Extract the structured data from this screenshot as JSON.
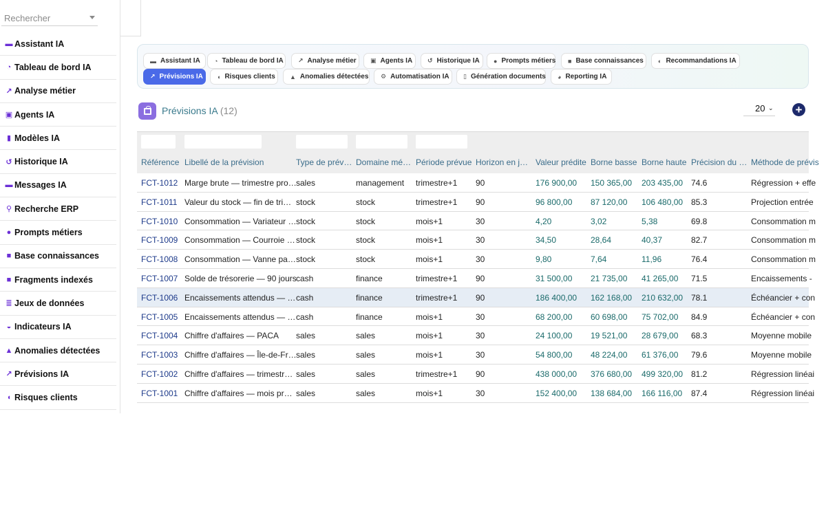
{
  "search": {
    "placeholder": "Rechercher"
  },
  "sidebar": {
    "items": [
      {
        "label": "Assistant IA",
        "icon": "chat-icon"
      },
      {
        "label": "Tableau de bord IA",
        "icon": "dashboard-icon"
      },
      {
        "label": "Analyse métier",
        "icon": "chart-line-icon"
      },
      {
        "label": "Agents IA",
        "icon": "robot-icon"
      },
      {
        "label": "Modèles IA",
        "icon": "book-icon"
      },
      {
        "label": "Historique IA",
        "icon": "history-icon"
      },
      {
        "label": "Messages IA",
        "icon": "comment-icon"
      },
      {
        "label": "Recherche ERP",
        "icon": "search-icon"
      },
      {
        "label": "Prompts métiers",
        "icon": "lightbulb-icon"
      },
      {
        "label": "Base connaissances",
        "icon": "book-open-icon"
      },
      {
        "label": "Fragments indexés",
        "icon": "puzzle-icon"
      },
      {
        "label": "Jeux de données",
        "icon": "database-icon"
      },
      {
        "label": "Indicateurs IA",
        "icon": "gauge-icon"
      },
      {
        "label": "Anomalies détectées",
        "icon": "warning-icon"
      },
      {
        "label": "Prévisions IA",
        "icon": "chart-line-icon"
      },
      {
        "label": "Risques clients",
        "icon": "shield-icon"
      }
    ]
  },
  "tabs": [
    {
      "label": "Assistant IA",
      "icon": "chat-icon",
      "active": false
    },
    {
      "label": "Tableau de bord IA",
      "icon": "dashboard-icon",
      "active": false
    },
    {
      "label": "Analyse métier",
      "icon": "chart-line-icon",
      "active": false
    },
    {
      "label": "Agents IA",
      "icon": "robot-icon",
      "active": false
    },
    {
      "label": "Historique IA",
      "icon": "history-icon",
      "active": false
    },
    {
      "label": "Prompts métiers",
      "icon": "lightbulb-icon",
      "active": false
    },
    {
      "label": "Base connaissances",
      "icon": "book-open-icon",
      "active": false
    },
    {
      "label": "Recommandations IA",
      "icon": "brain-icon",
      "active": false
    },
    {
      "label": "Prévisions IA",
      "icon": "chart-line-icon",
      "active": true
    },
    {
      "label": "Risques clients",
      "icon": "shield-icon",
      "active": false
    },
    {
      "label": "Anomalies détectées",
      "icon": "warning-icon",
      "active": false
    },
    {
      "label": "Automatisation IA",
      "icon": "cogs-icon",
      "active": false
    },
    {
      "label": "Génération documents",
      "icon": "file-icon",
      "active": false
    },
    {
      "label": "Reporting IA",
      "icon": "pie-chart-icon",
      "active": false
    }
  ],
  "page": {
    "title": "Prévisions IA",
    "count": "(12)",
    "page_size": "20",
    "accent_color": "#4a6ae8"
  },
  "table": {
    "columns": [
      "Référence",
      "Libellé de la prévision",
      "Type de prév…",
      "Domaine mé…",
      "Période prévue",
      "Horizon en j…",
      "Valeur prédite",
      "Borne basse",
      "Borne haute",
      "Précision du …",
      "Méthode de prévis"
    ],
    "rows": [
      [
        "FCT-1012",
        "Marge brute — trimestre pro…",
        "sales",
        "management",
        "trimestre+1",
        "90",
        "176 900,00",
        "150 365,00",
        "203 435,00",
        "74.6",
        "Régression + effe"
      ],
      [
        "FCT-1011",
        "Valeur du stock — fin de tri…",
        "stock",
        "stock",
        "trimestre+1",
        "90",
        "96 800,00",
        "87 120,00",
        "106 480,00",
        "85.3",
        "Projection entrée"
      ],
      [
        "FCT-1010",
        "Consommation — Variateur …",
        "stock",
        "stock",
        "mois+1",
        "30",
        "4,20",
        "3,02",
        "5,38",
        "69.8",
        "Consommation m"
      ],
      [
        "FCT-1009",
        "Consommation — Courroie …",
        "stock",
        "stock",
        "mois+1",
        "30",
        "34,50",
        "28,64",
        "40,37",
        "82.7",
        "Consommation m"
      ],
      [
        "FCT-1008",
        "Consommation — Vanne pa…",
        "stock",
        "stock",
        "mois+1",
        "30",
        "9,80",
        "7,64",
        "11,96",
        "76.4",
        "Consommation m"
      ],
      [
        "FCT-1007",
        "Solde de trésorerie — 90 jours",
        "cash",
        "finance",
        "trimestre+1",
        "90",
        "31 500,00",
        "21 735,00",
        "41 265,00",
        "71.5",
        "Encaissements -"
      ],
      [
        "FCT-1006",
        "Encaissements attendus — …",
        "cash",
        "finance",
        "trimestre+1",
        "90",
        "186 400,00",
        "162 168,00",
        "210 632,00",
        "78.1",
        "Échéancier + con"
      ],
      [
        "FCT-1005",
        "Encaissements attendus — …",
        "cash",
        "finance",
        "mois+1",
        "30",
        "68 200,00",
        "60 698,00",
        "75 702,00",
        "84.9",
        "Échéancier + con"
      ],
      [
        "FCT-1004",
        "Chiffre d'affaires — PACA",
        "sales",
        "sales",
        "mois+1",
        "30",
        "24 100,00",
        "19 521,00",
        "28 679,00",
        "68.3",
        "Moyenne mobile"
      ],
      [
        "FCT-1003",
        "Chiffre d'affaires — Île-de-Fr…",
        "sales",
        "sales",
        "mois+1",
        "30",
        "54 800,00",
        "48 224,00",
        "61 376,00",
        "79.6",
        "Moyenne mobile"
      ],
      [
        "FCT-1002",
        "Chiffre d'affaires — trimestr…",
        "sales",
        "sales",
        "trimestre+1",
        "90",
        "438 000,00",
        "376 680,00",
        "499 320,00",
        "81.2",
        "Régression linéai"
      ],
      [
        "FCT-1001",
        "Chiffre d'affaires — mois pr…",
        "sales",
        "sales",
        "mois+1",
        "30",
        "152 400,00",
        "138 684,00",
        "166 116,00",
        "87.4",
        "Régression linéai"
      ]
    ],
    "highlighted_row": 6
  }
}
